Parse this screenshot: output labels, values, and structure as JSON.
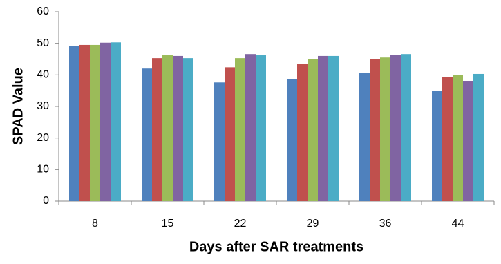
{
  "chart_data": {
    "type": "bar",
    "xlabel": "Days after SAR treatments",
    "ylabel": "SPAD Value",
    "categories": [
      "8",
      "15",
      "22",
      "29",
      "36",
      "44"
    ],
    "series": [
      {
        "color": "#4f81bd",
        "values": [
          49.2,
          42.0,
          37.6,
          38.7,
          40.7,
          35.0
        ]
      },
      {
        "color": "#c0504d",
        "values": [
          49.5,
          45.3,
          42.4,
          43.5,
          45.1,
          39.2
        ]
      },
      {
        "color": "#9bbb59",
        "values": [
          49.5,
          46.2,
          45.3,
          44.9,
          45.5,
          40.0
        ]
      },
      {
        "color": "#8064a2",
        "values": [
          50.2,
          46.0,
          46.6,
          46.0,
          46.4,
          38.1
        ]
      },
      {
        "color": "#4bacc6",
        "values": [
          50.3,
          45.3,
          46.2,
          46.0,
          46.6,
          40.3
        ]
      }
    ],
    "ylim": [
      0,
      60
    ],
    "yticks": [
      0,
      10,
      20,
      30,
      40,
      50,
      60
    ],
    "grid": false
  }
}
